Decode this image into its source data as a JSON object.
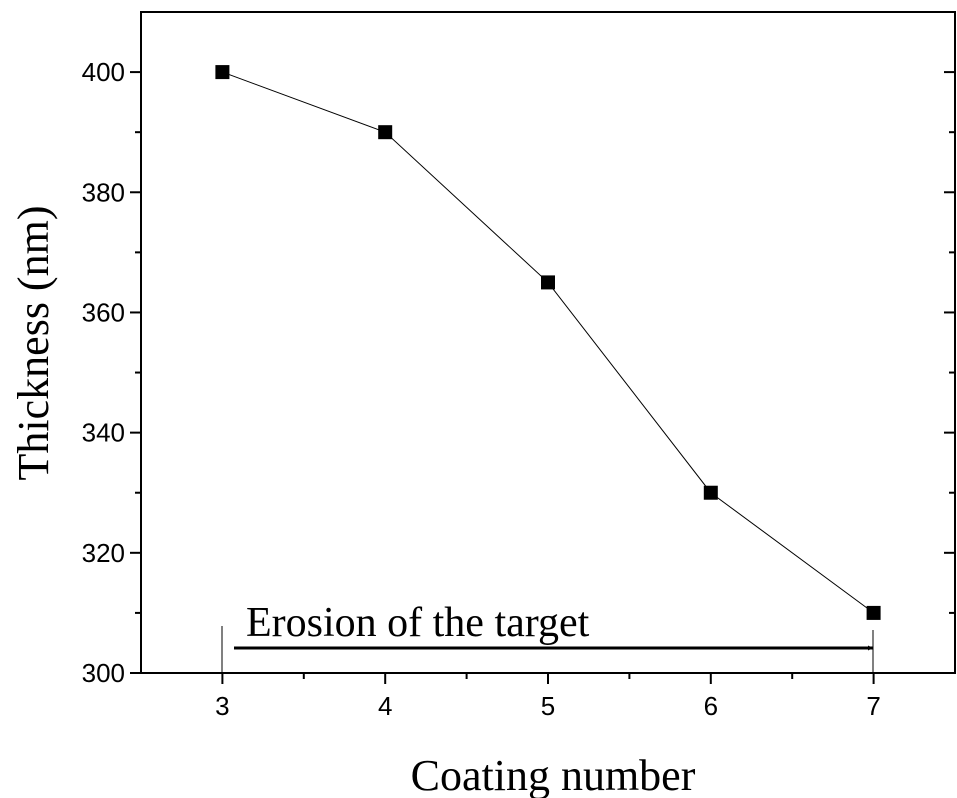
{
  "chart_data": {
    "type": "line",
    "x_label": "Coating number",
    "y_label": "Thickness (nm)",
    "annotation": "Erosion of the target",
    "x": [
      3,
      4,
      5,
      6,
      7
    ],
    "values": [
      400,
      390,
      365,
      330,
      310
    ],
    "color": "#000000",
    "xlim": [
      2.5,
      7.5
    ],
    "xticks": [
      3,
      4,
      5,
      6,
      7
    ],
    "ylim": [
      300,
      410
    ],
    "yticks": [
      300,
      320,
      340,
      360,
      380,
      400
    ]
  }
}
